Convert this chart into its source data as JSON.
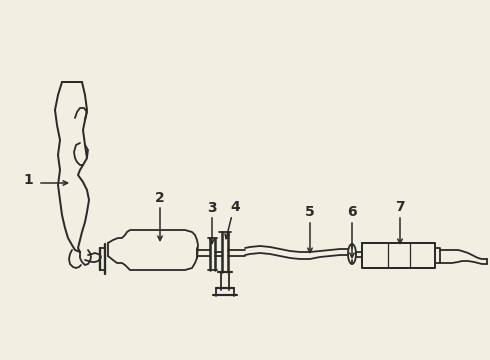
{
  "bg_color": "#f2efe2",
  "line_color": "#2a2a2a",
  "lw": 1.3,
  "fig_w": 4.9,
  "fig_h": 3.6,
  "dpi": 100
}
